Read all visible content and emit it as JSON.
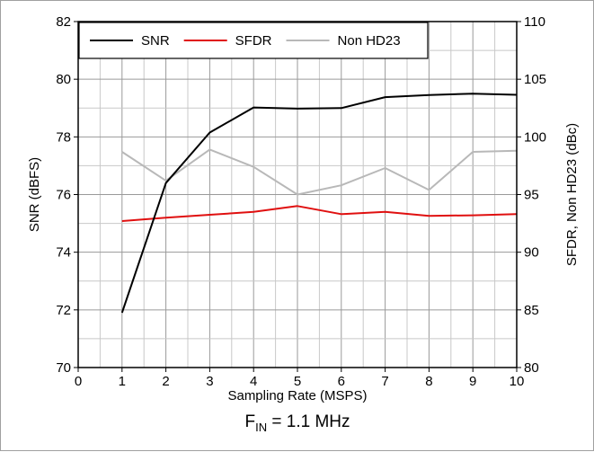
{
  "chart_data": {
    "type": "line",
    "title": "",
    "note": {
      "prefix": "F",
      "subscript": "IN",
      "suffix": " = 1.1 MHz"
    },
    "xlabel": "Sampling Rate (MSPS)",
    "ylabel_left": "SNR (dBFS)",
    "ylabel_right": "SFDR, Non HD23 (dBc)",
    "xlim": [
      0,
      10
    ],
    "ylim_left": [
      70,
      82
    ],
    "ylim_right": [
      80,
      110
    ],
    "x_ticks": [
      0,
      1,
      2,
      3,
      4,
      5,
      6,
      7,
      8,
      9,
      10
    ],
    "x_tick_labels": [
      "0",
      "1",
      "2",
      "3",
      "4",
      "5",
      "6",
      "7",
      "8",
      "9",
      "10"
    ],
    "y_left_ticks": [
      70,
      72,
      74,
      76,
      78,
      80,
      82
    ],
    "y_left_tick_labels": [
      "70",
      "72",
      "74",
      "76",
      "78",
      "80",
      "82"
    ],
    "y_right_ticks": [
      80,
      85,
      90,
      95,
      100,
      105,
      110
    ],
    "y_right_tick_labels": [
      "80",
      "85",
      "90",
      "95",
      "100",
      "105",
      "110"
    ],
    "minor_grid_step_x": 0.5,
    "minor_grid_step_y_left": 1,
    "grid": true,
    "legend_position": "top-left",
    "x": [
      1,
      2,
      3,
      4,
      5,
      6,
      7,
      8,
      9,
      10
    ],
    "series": [
      {
        "name": "SNR",
        "axis": "left",
        "color": "#000000",
        "values": [
          71.9,
          76.4,
          78.15,
          79.02,
          78.98,
          79.0,
          79.38,
          79.45,
          79.5,
          79.46
        ]
      },
      {
        "name": "SFDR",
        "axis": "right",
        "color": "#e01010",
        "values": [
          92.7,
          93.0,
          93.25,
          93.5,
          94.0,
          93.3,
          93.5,
          93.15,
          93.2,
          93.3
        ]
      },
      {
        "name": "Non HD23",
        "axis": "right",
        "color": "#b8b8b8",
        "values": [
          98.7,
          96.2,
          98.9,
          97.4,
          95.0,
          95.8,
          97.3,
          95.4,
          98.7,
          98.8
        ]
      }
    ]
  }
}
